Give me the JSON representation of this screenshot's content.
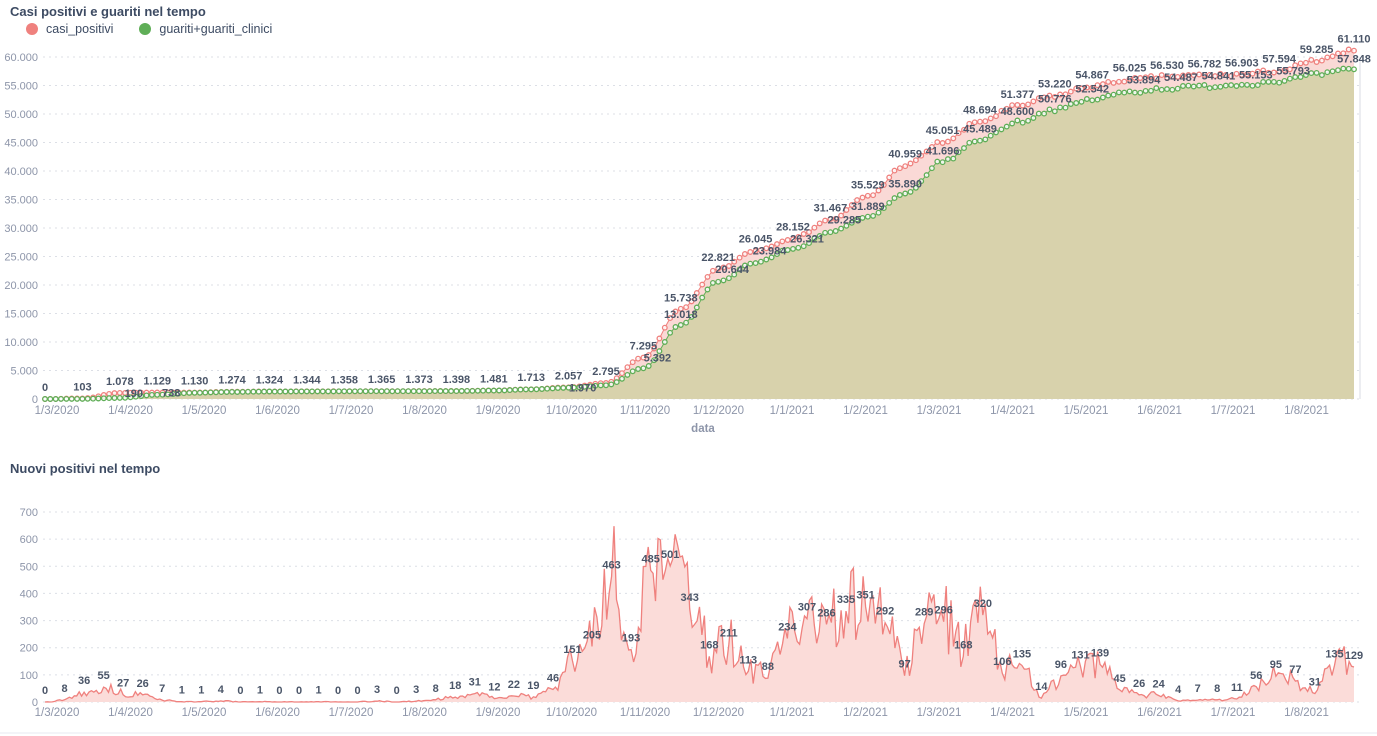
{
  "colors": {
    "red": "#ef817e",
    "red_fill": "#fad9d6",
    "red_fill_light": "#fbdcd9",
    "green": "#5fae57",
    "olive_fill": "#d8d2ac",
    "label": "#4a5568",
    "axis": "#8d95a9",
    "title": "#3d4b63",
    "grid": "#dcdfe6"
  },
  "chart_data": [
    {
      "type": "line",
      "title": "Casi positivi e guariti nel tempo",
      "xlabel": "data",
      "ylabel": "",
      "ylim": [
        0,
        60000
      ],
      "grid": true,
      "legend_position": "top-left",
      "x_ticks": [
        "1/3/2020",
        "1/4/2020",
        "1/5/2020",
        "1/6/2020",
        "1/7/2020",
        "1/8/2020",
        "1/9/2020",
        "1/10/2020",
        "1/11/2020",
        "1/12/2020",
        "1/1/2021",
        "1/2/2021",
        "1/3/2021",
        "1/4/2021",
        "1/5/2021",
        "1/6/2021",
        "1/7/2021",
        "1/8/2021"
      ],
      "y_ticks": [
        "0",
        "5.000",
        "10.000",
        "15.000",
        "20.000",
        "25.000",
        "30.000",
        "35.000",
        "40.000",
        "45.000",
        "50.000",
        "55.000",
        "60.000"
      ],
      "legend": [
        {
          "name": "casi_positivi",
          "color": "#ef817e"
        },
        {
          "name": "guariti+guariti_clinici",
          "color": "#5fae57"
        }
      ],
      "series": [
        {
          "name": "casi_positivi",
          "values": [
            0,
            103,
            1078,
            1129,
            1130,
            1274,
            1324,
            1344,
            1358,
            1365,
            1373,
            1398,
            1481,
            1713,
            2057,
            2795,
            7295,
            15738,
            22821,
            26045,
            28152,
            31467,
            35529,
            40959,
            45051,
            48694,
            51377,
            53220,
            54867,
            56025,
            56530,
            56782,
            56903,
            57594,
            59285,
            61110
          ],
          "labels": [
            "0",
            "103",
            "1.078",
            "1.129",
            "1.130",
            "1.274",
            "1.324",
            "1.344",
            "1.358",
            "1.365",
            "1.373",
            "1.398",
            "1.481",
            "1.713",
            "2.057",
            "2.795",
            "7.295",
            "15.738",
            "22.821",
            "26.045",
            "28.152",
            "31.467",
            "35.529",
            "40.959",
            "45.051",
            "48.694",
            "51.377",
            "53.220",
            "54.867",
            "56.025",
            "56.530",
            "56.782",
            "56.903",
            "57.594",
            "59.285",
            "61.110"
          ]
        },
        {
          "name": "guariti+guariti_clinici",
          "values": [
            0,
            25,
            190,
            738,
            1090,
            1235,
            1300,
            1332,
            1350,
            1361,
            1369,
            1394,
            1470,
            1695,
            1970,
            2400,
            5392,
            13018,
            20644,
            23984,
            26321,
            29285,
            31889,
            35890,
            41696,
            45489,
            48600,
            50776,
            52542,
            53894,
            54487,
            54841,
            55153,
            55793,
            56900,
            57848
          ],
          "labels": [
            null,
            null,
            "190",
            "738",
            null,
            null,
            null,
            null,
            null,
            null,
            null,
            null,
            null,
            null,
            "1.970",
            null,
            "5.392",
            "13.018",
            "20.644",
            "23.984",
            "26.321",
            "29.285",
            "31.889",
            "35.890",
            "41.696",
            "45.489",
            "48.600",
            "50.776",
            "52.542",
            "53.894",
            "54.487",
            "54.841",
            "55.153",
            "55.793",
            null,
            "57.848"
          ]
        }
      ]
    },
    {
      "type": "area",
      "title": "Nuovi positivi nel tempo",
      "xlabel": "",
      "ylabel": "",
      "ylim": [
        0,
        700
      ],
      "grid": true,
      "x_ticks": [
        "1/3/2020",
        "1/4/2020",
        "1/5/2020",
        "1/6/2020",
        "1/7/2020",
        "1/8/2020",
        "1/9/2020",
        "1/10/2020",
        "1/11/2020",
        "1/12/2020",
        "1/1/2021",
        "1/2/2021",
        "1/3/2021",
        "1/4/2021",
        "1/5/2021",
        "1/6/2021",
        "1/7/2021",
        "1/8/2021"
      ],
      "y_ticks": [
        "0",
        "100",
        "200",
        "300",
        "400",
        "500",
        "600",
        "700"
      ],
      "series": [
        {
          "name": "nuovi_positivi",
          "values": [
            0,
            8,
            36,
            55,
            27,
            26,
            7,
            1,
            1,
            4,
            0,
            1,
            0,
            0,
            1,
            0,
            0,
            3,
            0,
            3,
            8,
            18,
            31,
            12,
            22,
            19,
            46,
            151,
            205,
            463,
            193,
            485,
            501,
            343,
            168,
            211,
            113,
            88,
            234,
            307,
            286,
            335,
            351,
            292,
            97,
            289,
            296,
            168,
            320,
            106,
            135,
            14,
            96,
            131,
            139,
            45,
            26,
            24,
            4,
            7,
            8,
            11,
            56,
            95,
            77,
            31,
            135,
            129
          ],
          "labels": [
            "0",
            "8",
            "36",
            "55",
            "27",
            "26",
            "7",
            "1",
            "1",
            "4",
            "0",
            "1",
            "0",
            "0",
            "1",
            "0",
            "0",
            "3",
            "0",
            "3",
            "8",
            "18",
            "31",
            "12",
            "22",
            "19",
            "46",
            "151",
            "205",
            "463",
            "193",
            "485",
            "501",
            "343",
            "168",
            "211",
            "113",
            "88",
            "234",
            "307",
            "286",
            "335",
            "351",
            "292",
            "97",
            "289",
            "296",
            "168",
            "320",
            "106",
            "135",
            "14",
            "96",
            "131",
            "139",
            "45",
            "26",
            "24",
            "4",
            "7",
            "8",
            "11",
            "56",
            "95",
            "77",
            "31",
            "135",
            "129"
          ]
        }
      ]
    }
  ]
}
